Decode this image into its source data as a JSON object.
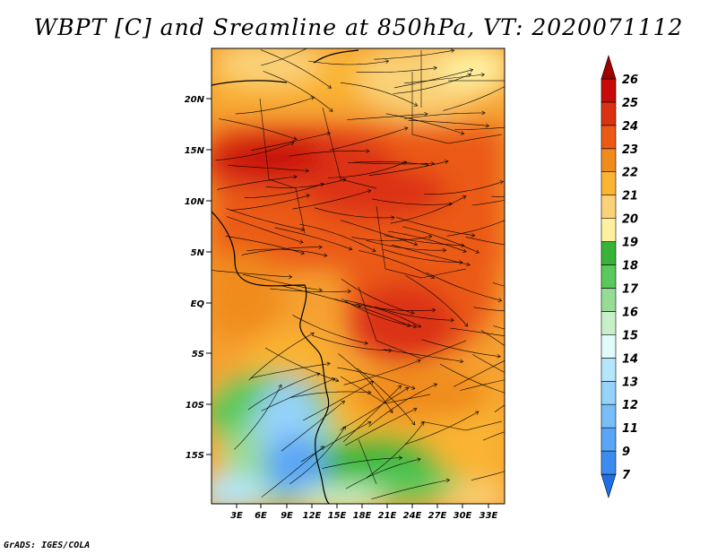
{
  "title": "WBPT [C] and Sreamline at 850hPa, VT: 2020071112",
  "footer": "GrADS: IGES/COLA",
  "map": {
    "field": "WBPT",
    "units": "C",
    "level": "850hPa",
    "valid_time": "2020071112",
    "lat_labels": [
      "20N",
      "15N",
      "10N",
      "5N",
      "EQ",
      "5S",
      "10S",
      "15S"
    ],
    "lon_labels": [
      "3E",
      "6E",
      "9E",
      "12E",
      "15E",
      "18E",
      "21E",
      "24E",
      "27E",
      "30E",
      "33E"
    ]
  },
  "colorbar": {
    "labels": [
      "7",
      "9",
      "11",
      "12",
      "13",
      "14",
      "15",
      "16",
      "17",
      "18",
      "19",
      "20",
      "21",
      "22",
      "23",
      "24",
      "25",
      "26"
    ],
    "colors": [
      "#1e6ee6",
      "#3c8cf0",
      "#5aa5f5",
      "#78bef8",
      "#96d2fa",
      "#b4e6fc",
      "#e1fafa",
      "#c8f0c8",
      "#96dc96",
      "#5ac85a",
      "#37b437",
      "#fff0a0",
      "#fad278",
      "#fab432",
      "#f08c1e",
      "#eb5a14",
      "#dc3214",
      "#c80a0a",
      "#a00000"
    ]
  },
  "colors": {
    "coast": "#000000",
    "streamline": "#000000"
  }
}
